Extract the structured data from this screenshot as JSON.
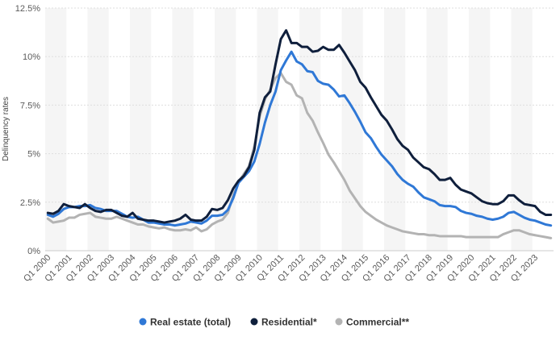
{
  "chart_data": {
    "type": "line",
    "title": "",
    "xlabel": "",
    "ylabel": "Delinquency rates",
    "ylim": [
      0,
      12.5
    ],
    "yticks": [
      0,
      2.5,
      5,
      7.5,
      10,
      12.5
    ],
    "ytick_labels": [
      "0%",
      "2.5%",
      "5%",
      "7.5%",
      "10%",
      "12.5%"
    ],
    "x_start_year": 2000,
    "num_quarters": 96,
    "x_tick_labels": [
      "Q1 2000",
      "Q1 2001",
      "Q1 2002",
      "Q1 2003",
      "Q1 2004",
      "Q1 2005",
      "Q1 2006",
      "Q1 2007",
      "Q1 2008",
      "Q1 2009",
      "Q1 2010",
      "Q1 2011",
      "Q1 2012",
      "Q1 2013",
      "Q1 2014",
      "Q1 2015",
      "Q1 2016",
      "Q1 2017",
      "Q1 2018",
      "Q1 2019",
      "Q1 2020",
      "Q1 2021",
      "Q1 2022",
      "Q1 2023"
    ],
    "grid": true,
    "legend_position": "bottom",
    "series": [
      {
        "name": "Real estate (total)",
        "color": "#2f78d6",
        "values": [
          1.85,
          1.75,
          1.9,
          2.15,
          2.25,
          2.25,
          2.3,
          2.3,
          2.35,
          2.2,
          2.15,
          2.05,
          2.05,
          2.05,
          1.9,
          1.75,
          1.7,
          1.75,
          1.6,
          1.45,
          1.45,
          1.4,
          1.35,
          1.35,
          1.3,
          1.35,
          1.4,
          1.5,
          1.45,
          1.4,
          1.55,
          1.8,
          1.8,
          1.85,
          2.1,
          2.7,
          3.5,
          3.8,
          4.1,
          4.6,
          5.5,
          6.6,
          7.5,
          8.2,
          9.3,
          9.8,
          10.25,
          9.75,
          9.6,
          9.25,
          9.2,
          8.75,
          8.6,
          8.55,
          8.3,
          7.95,
          8.0,
          7.6,
          7.15,
          6.65,
          6.1,
          5.8,
          5.35,
          4.95,
          4.65,
          4.35,
          3.95,
          3.65,
          3.45,
          3.3,
          3.0,
          2.75,
          2.65,
          2.55,
          2.35,
          2.3,
          2.3,
          2.25,
          2.05,
          1.95,
          1.9,
          1.8,
          1.75,
          1.65,
          1.6,
          1.65,
          1.75,
          1.95,
          2.0,
          1.85,
          1.7,
          1.6,
          1.55,
          1.45,
          1.35,
          1.3
        ]
      },
      {
        "name": "Residential*",
        "color": "#0f1f3c",
        "values": [
          1.95,
          1.9,
          2.05,
          2.4,
          2.3,
          2.25,
          2.2,
          2.4,
          2.2,
          2.05,
          2.0,
          2.1,
          2.1,
          1.95,
          1.8,
          1.75,
          1.95,
          1.65,
          1.6,
          1.55,
          1.55,
          1.5,
          1.45,
          1.5,
          1.55,
          1.65,
          1.85,
          1.6,
          1.55,
          1.55,
          1.75,
          2.15,
          2.1,
          2.2,
          2.6,
          3.2,
          3.6,
          3.85,
          4.3,
          5.2,
          7.1,
          7.9,
          8.2,
          9.6,
          10.9,
          11.35,
          10.7,
          10.7,
          10.5,
          10.5,
          10.25,
          10.3,
          10.5,
          10.35,
          10.35,
          10.6,
          10.2,
          9.75,
          9.3,
          8.7,
          8.4,
          7.9,
          7.45,
          7.0,
          6.7,
          6.25,
          5.75,
          5.4,
          5.2,
          4.8,
          4.55,
          4.3,
          4.2,
          3.95,
          3.65,
          3.65,
          3.75,
          3.4,
          3.15,
          3.05,
          2.95,
          2.75,
          2.55,
          2.45,
          2.4,
          2.4,
          2.55,
          2.85,
          2.85,
          2.6,
          2.4,
          2.35,
          2.3,
          2.0,
          1.85,
          1.85
        ]
      },
      {
        "name": "Commercial**",
        "color": "#b3b3b3",
        "values": [
          1.65,
          1.45,
          1.5,
          1.55,
          1.7,
          1.7,
          1.85,
          1.9,
          1.95,
          1.75,
          1.7,
          1.65,
          1.65,
          1.75,
          1.65,
          1.55,
          1.45,
          1.35,
          1.35,
          1.25,
          1.2,
          1.15,
          1.2,
          1.1,
          1.05,
          1.05,
          1.1,
          1.05,
          1.2,
          1.0,
          1.1,
          1.35,
          1.5,
          1.6,
          1.95,
          2.85,
          3.5,
          3.95,
          4.35,
          5.4,
          6.9,
          7.8,
          8.3,
          8.9,
          9.15,
          8.7,
          8.55,
          8.0,
          7.85,
          7.1,
          6.7,
          6.1,
          5.55,
          4.95,
          4.55,
          4.1,
          3.65,
          3.1,
          2.7,
          2.3,
          2.0,
          1.8,
          1.6,
          1.45,
          1.3,
          1.2,
          1.1,
          1.0,
          0.95,
          0.9,
          0.85,
          0.85,
          0.8,
          0.8,
          0.75,
          0.75,
          0.75,
          0.75,
          0.75,
          0.7,
          0.7,
          0.7,
          0.7,
          0.7,
          0.7,
          0.7,
          0.85,
          0.95,
          1.05,
          1.05,
          0.95,
          0.85,
          0.8,
          0.75,
          0.7,
          0.65
        ]
      }
    ]
  }
}
